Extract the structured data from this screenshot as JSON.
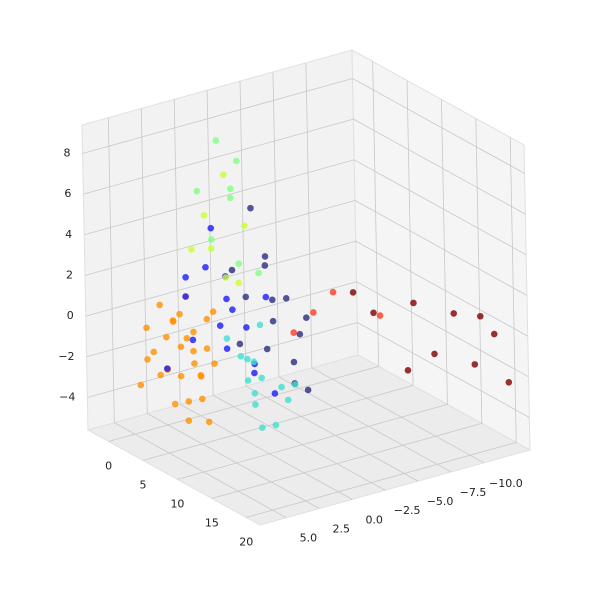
{
  "chart_data": {
    "type": "scatter3d",
    "xlim": [
      -3,
      22
    ],
    "ylim": [
      -13.5,
      7
    ],
    "zlim": [
      -5.6,
      9.4
    ],
    "xticks": [
      0,
      5,
      10,
      15,
      20
    ],
    "yticks": [
      {
        "value": 5,
        "label": "5.0"
      },
      2.5,
      {
        "value": 0,
        "label": "0.0"
      },
      {
        "value": -2.5,
        "label": "−2.5"
      },
      {
        "value": -5,
        "label": "−5.0"
      },
      {
        "value": -7.5,
        "label": "−7.5"
      },
      {
        "value": -10,
        "label": "−10.0"
      }
    ],
    "zticks": [
      {
        "value": -4,
        "label": "−4"
      },
      {
        "value": -2,
        "label": "−2"
      },
      0,
      2,
      4,
      6,
      8
    ],
    "grid": true,
    "series": [
      {
        "color": "#ff9000",
        "x": [
          1,
          2,
          3,
          2,
          4,
          3,
          5,
          6,
          4,
          5,
          6,
          7,
          2,
          8,
          3,
          4,
          5,
          6,
          7,
          1,
          9,
          4,
          3,
          5,
          8,
          2,
          6,
          10,
          7,
          4
        ],
        "y": [
          5,
          4,
          5,
          3,
          4,
          2,
          4,
          5,
          6,
          3,
          2,
          4,
          2,
          5,
          4,
          3,
          5,
          3,
          5,
          3,
          4,
          5,
          3,
          2,
          3,
          5,
          4,
          5,
          3,
          2
        ],
        "z": [
          -3,
          -2.5,
          -1,
          0,
          0.5,
          -1.5,
          -2,
          -3,
          -1,
          0,
          1,
          -1,
          1,
          -2.5,
          -2,
          -0.5,
          -1.5,
          -2,
          0,
          -1,
          -3.5,
          1.5,
          0.5,
          -1,
          -1,
          0,
          -4,
          -2,
          1,
          -2.5
        ]
      },
      {
        "color": "#1a1aff",
        "x": [
          2,
          4,
          6,
          3,
          8,
          5,
          1,
          7,
          9,
          4,
          6,
          2,
          10,
          3,
          5,
          8
        ],
        "y": [
          2,
          0,
          1,
          -1,
          0,
          2,
          1,
          2,
          -1,
          3,
          -2,
          0,
          1,
          4,
          -1,
          2
        ],
        "z": [
          1,
          2,
          -1,
          0,
          -2,
          3,
          -1.5,
          0.5,
          -3,
          2.5,
          1,
          4,
          -1,
          -2,
          -0.5,
          2
        ]
      },
      {
        "color": "#2b2b80",
        "x": [
          5,
          7,
          4,
          8,
          6,
          8,
          5,
          9,
          4,
          7,
          10,
          5,
          8,
          4,
          10
        ],
        "y": [
          -1,
          -2,
          -3,
          -1,
          -2,
          -3,
          -3,
          -2,
          -2,
          -4,
          -2,
          0,
          -4,
          -1,
          -3
        ],
        "z": [
          1,
          0,
          2,
          -1,
          3,
          -2,
          0.5,
          1.5,
          5,
          -1,
          -2.5,
          2.5,
          0,
          -1.5,
          -3
        ]
      },
      {
        "color": "#40e0d0",
        "x": [
          8,
          9,
          7,
          10,
          6,
          9,
          11,
          8,
          10,
          7,
          12,
          9,
          6,
          11
        ],
        "y": [
          0,
          1,
          0,
          -1,
          1,
          -2,
          0,
          1,
          1,
          -1,
          -1,
          0,
          -1,
          1
        ],
        "z": [
          -3,
          -2,
          -1.5,
          -2.5,
          -0.5,
          -3.5,
          -4,
          -1,
          -3,
          0,
          -2,
          -4.5,
          -2,
          -1.5
        ]
      },
      {
        "color": "#80ff80",
        "x": [
          3,
          4,
          2,
          5,
          3,
          4,
          6,
          5
        ],
        "y": [
          0,
          -1,
          1,
          0,
          -1,
          1,
          0,
          -2
        ],
        "z": [
          8.5,
          7.5,
          6,
          6.5,
          5.5,
          4,
          3,
          2
        ]
      },
      {
        "color": "#c8ff30",
        "x": [
          4,
          3,
          5,
          2,
          6,
          4,
          3
        ],
        "y": [
          0,
          1,
          -1,
          0,
          1,
          -1,
          2
        ],
        "z": [
          7,
          5,
          4.5,
          3,
          2.5,
          1.5,
          3.5
        ]
      },
      {
        "color": "#ff3a20",
        "x": [
          11,
          13,
          12,
          10
        ],
        "y": [
          -3,
          -7,
          -4,
          -2
        ],
        "z": [
          1,
          0.5,
          2,
          0
        ]
      },
      {
        "color": "#7f0000",
        "x": [
          14,
          16,
          18,
          20,
          19,
          17,
          15,
          13,
          22,
          18
        ],
        "y": [
          -6,
          -8,
          -10,
          -12,
          -11,
          -9,
          -8,
          -5,
          -12,
          -12
        ],
        "z": [
          1,
          1.5,
          1,
          0,
          -1.5,
          -1,
          -2,
          2,
          -2,
          0.5
        ]
      }
    ]
  }
}
